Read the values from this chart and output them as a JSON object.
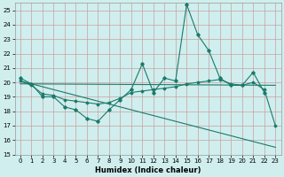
{
  "title": "",
  "xlabel": "Humidex (Indice chaleur)",
  "background_color": "#d0eeee",
  "grid_color": "#c8a0a0",
  "line_color": "#1a7a6a",
  "xlim": [
    -0.5,
    23.5
  ],
  "ylim": [
    15,
    25.5
  ],
  "yticks": [
    15,
    16,
    17,
    18,
    19,
    20,
    21,
    22,
    23,
    24,
    25
  ],
  "xticks": [
    0,
    1,
    2,
    3,
    4,
    5,
    6,
    7,
    8,
    9,
    10,
    11,
    12,
    13,
    14,
    15,
    16,
    17,
    18,
    19,
    20,
    21,
    22,
    23
  ],
  "line1_x": [
    0,
    1,
    2,
    3,
    4,
    5,
    6,
    7,
    8,
    9,
    10,
    11,
    12,
    13,
    14,
    15,
    16,
    17,
    18,
    19,
    20,
    21,
    22
  ],
  "line1_y": [
    20.3,
    19.9,
    19.0,
    19.0,
    18.3,
    18.1,
    17.5,
    17.3,
    18.1,
    18.8,
    19.5,
    21.3,
    19.3,
    20.3,
    20.1,
    25.4,
    23.3,
    22.2,
    20.3,
    19.8,
    19.8,
    20.7,
    19.3
  ],
  "line2_x": [
    0,
    1,
    2,
    3,
    4,
    5,
    6,
    7,
    8,
    9,
    10,
    11,
    12,
    13,
    14,
    15,
    16,
    17,
    18,
    19,
    20,
    21,
    22,
    23
  ],
  "line2_y": [
    20.1,
    19.8,
    19.2,
    19.1,
    18.8,
    18.7,
    18.6,
    18.5,
    18.6,
    18.9,
    19.3,
    19.4,
    19.5,
    19.6,
    19.7,
    19.9,
    20.0,
    20.1,
    20.2,
    19.9,
    19.8,
    20.0,
    19.5,
    17.0
  ],
  "line3_x": [
    0,
    23
  ],
  "line3_y": [
    20.1,
    15.5
  ],
  "line4_x": [
    0,
    23
  ],
  "line4_y": [
    19.9,
    19.8
  ],
  "xlabel_fontsize": 6.0,
  "tick_fontsize": 5.0
}
